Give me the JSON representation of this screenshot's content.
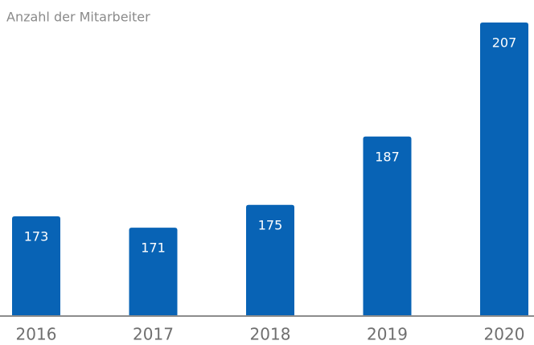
{
  "chart_data": {
    "type": "bar",
    "title": "Anzahl der Mitarbeiter",
    "categories": [
      "2016",
      "2017",
      "2018",
      "2019",
      "2020"
    ],
    "values": [
      173,
      171,
      175,
      187,
      207
    ],
    "color": "#0863b5",
    "ylim": [
      155.5,
      210
    ]
  }
}
